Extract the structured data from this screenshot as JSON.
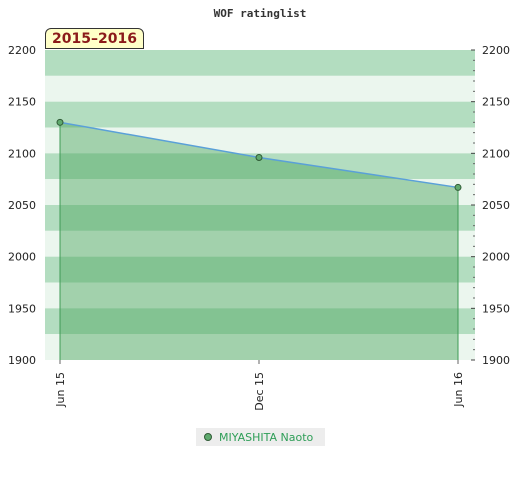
{
  "chart_data": {
    "type": "area",
    "title": "WOF ratinglist",
    "season_label": "2015–2016",
    "xlabel": "",
    "ylabel": "",
    "x": [
      "Jun 15",
      "Dec 15",
      "Jun 16"
    ],
    "series": [
      {
        "name": "MIYASHITA Naoto",
        "values": [
          2130,
          2096,
          2067
        ]
      }
    ],
    "ylim": [
      1900,
      2200
    ],
    "yticks": [
      1900,
      1950,
      2000,
      2050,
      2100,
      2150,
      2200
    ],
    "y_axis_both_sides": true,
    "grid": "horizontal alternating bands",
    "legend_position": "bottom-center",
    "colors": {
      "line": "#5aa0d8",
      "fill": "#4aa55a",
      "marker_fill": "#5faa6e",
      "marker_stroke": "#2f5a35",
      "band_dark": "#b3ddc0",
      "band_light": "#ebf6ee"
    }
  }
}
